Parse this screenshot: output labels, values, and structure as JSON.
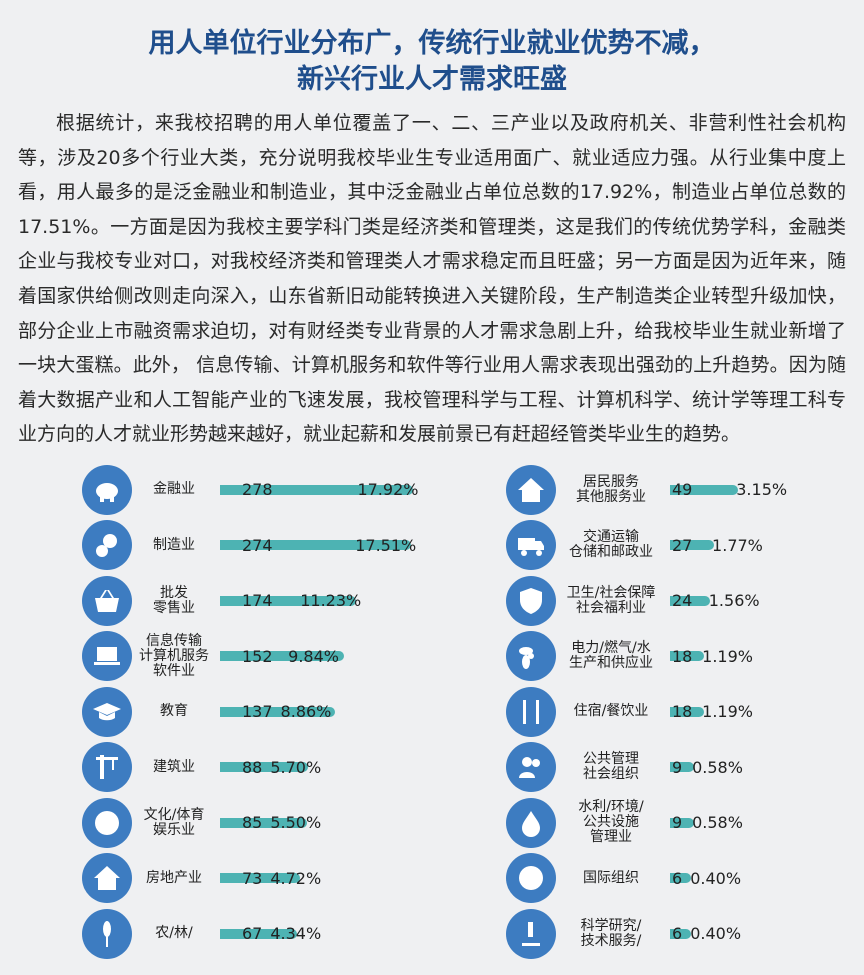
{
  "title": [
    "用人单位行业分布广，传统行业就业优势不减，",
    "新兴行业人才需求旺盛"
  ],
  "paragraph": "根据统计，来我校招聘的用人单位覆盖了一、二、三产业以及政府机关、非营利性社会机构等，涉及20多个行业大类，充分说明我校毕业生专业适用面广、就业适应力强。从行业集中度上看，用人最多的是泛金融业和制造业，其中泛金融业占单位总数的17.92%，制造业占单位总数的17.51%。一方面是因为我校主要学科门类是经济类和管理类，这是我们的传统优势学科，金融类企业与我校专业对口，对我校经济类和管理类人才需求稳定而且旺盛；另一方面是因为近年来，随着国家供给侧改则走向深入，山东省新旧动能转换进入关键阶段，生产制造类企业转型升级加快，部分企业上市融资需求迫切，对有财经类专业背景的人才需求急剧上升，给我校毕业生就业新增了一块大蛋糕。此外， 信息传输、计算机服务和软件等行业用人需求表现出强劲的上升趋势。因为随着大数据产业和人工智能产业的飞速发展，我校管理科学与工程、计算机科学、统计学等理工科专业方向的人才就业形势越来越好，就业起薪和发展前景已有赶超经管类毕业生的趋势。",
  "colors": {
    "title": "#1f4e8c",
    "icon": "#3d7cc1",
    "bar": "#4db3b3"
  },
  "left": [
    {
      "label": "金融业",
      "value": "278",
      "pct": "17.92%",
      "icon": "piggy-bank-icon"
    },
    {
      "label": "制造业",
      "value": "274",
      "pct": "17.51%",
      "icon": "gears-icon"
    },
    {
      "label": "批发\n零售业",
      "value": "174",
      "pct": "11.23%",
      "icon": "basket-icon"
    },
    {
      "label": "信息传输\n计算机服务\n软件业",
      "value": "152",
      "pct": "9.84%",
      "icon": "laptop-icon"
    },
    {
      "label": "教育",
      "value": "137",
      "pct": "8.86%",
      "icon": "graduation-cap-icon"
    },
    {
      "label": "建筑业",
      "value": "88",
      "pct": "5.70%",
      "icon": "crane-icon"
    },
    {
      "label": "文化/体育\n娱乐业",
      "value": "85",
      "pct": "5.50%",
      "icon": "music-disc-icon"
    },
    {
      "label": "房地产业",
      "value": "73",
      "pct": "4.72%",
      "icon": "house-icon"
    },
    {
      "label": "农/林/",
      "value": "67",
      "pct": "4.34%",
      "icon": "wheat-icon"
    }
  ],
  "right": [
    {
      "label": "居民服务\n其他服务业",
      "value": "49",
      "pct": "3.15%",
      "icon": "home-people-icon"
    },
    {
      "label": "交通运输\n仓储和邮政业",
      "value": "27",
      "pct": "1.77%",
      "icon": "truck-icon"
    },
    {
      "label": "卫生/社会保障\n社会福利业",
      "value": "24",
      "pct": "1.56%",
      "icon": "shield-check-icon"
    },
    {
      "label": "电力/燃气/水\n生产和供应业",
      "value": "18",
      "pct": "1.19%",
      "icon": "fan-icon"
    },
    {
      "label": "住宿/餐饮业",
      "value": "18",
      "pct": "1.19%",
      "icon": "fork-knife-icon"
    },
    {
      "label": "公共管理\n社会组织",
      "value": "9",
      "pct": "0.58%",
      "icon": "people-icon"
    },
    {
      "label": "水利/环境/\n公共设施\n管理业",
      "value": "9",
      "pct": "0.58%",
      "icon": "water-drop-icon"
    },
    {
      "label": "国际组织",
      "value": "6",
      "pct": "0.40%",
      "icon": "globe-icon"
    },
    {
      "label": "科学研究/\n技术服务/",
      "value": "6",
      "pct": "0.40%",
      "icon": "microscope-icon"
    }
  ]
}
